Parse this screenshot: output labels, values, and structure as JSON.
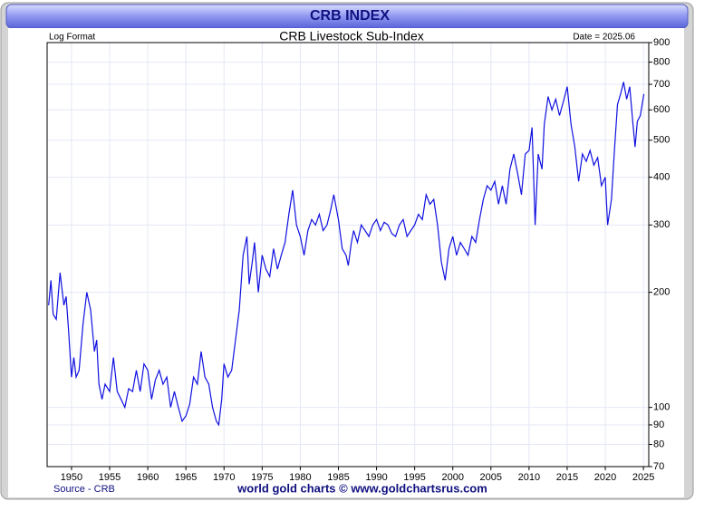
{
  "chart_data": {
    "type": "line",
    "title": "CRB INDEX",
    "subtitle": "CRB Livestock Sub-Index",
    "scale_note": "Log Format",
    "date_note": "Date = 2025.06",
    "source": "Source - CRB",
    "credit": "world gold charts © www.goldchartsrus.com",
    "log_scale": true,
    "grid": true,
    "xlim": [
      1946.8,
      2025.7
    ],
    "xticks": [
      1950,
      1955,
      1960,
      1965,
      1970,
      1975,
      1980,
      1985,
      1990,
      1995,
      2000,
      2005,
      2010,
      2015,
      2020,
      2025
    ],
    "ylim": [
      70,
      900
    ],
    "yticks": [
      70,
      80,
      90,
      100,
      200,
      300,
      400,
      500,
      600,
      700,
      800,
      900
    ],
    "series": [
      {
        "name": "CRB Livestock Sub-Index",
        "color": "#1010e0",
        "x": [
          1947.0,
          1947.3,
          1947.6,
          1948.0,
          1948.5,
          1949.0,
          1949.3,
          1949.6,
          1950.0,
          1950.3,
          1950.6,
          1951.0,
          1951.5,
          1952.0,
          1952.5,
          1953.0,
          1953.3,
          1953.6,
          1954.0,
          1954.4,
          1955.0,
          1955.5,
          1956.0,
          1956.5,
          1957.0,
          1957.5,
          1958.0,
          1958.5,
          1959.0,
          1959.5,
          1960.0,
          1960.5,
          1961.0,
          1961.5,
          1962.0,
          1962.5,
          1963.0,
          1963.5,
          1964.0,
          1964.5,
          1965.0,
          1965.5,
          1966.0,
          1966.5,
          1967.0,
          1967.5,
          1968.0,
          1968.5,
          1969.0,
          1969.3,
          1969.7,
          1970.0,
          1970.5,
          1971.0,
          1971.5,
          1972.0,
          1972.5,
          1973.0,
          1973.3,
          1973.7,
          1974.0,
          1974.5,
          1975.0,
          1975.5,
          1976.0,
          1976.5,
          1977.0,
          1977.5,
          1978.0,
          1978.5,
          1979.0,
          1979.5,
          1980.0,
          1980.5,
          1981.0,
          1981.5,
          1982.0,
          1982.5,
          1983.0,
          1983.5,
          1984.0,
          1984.4,
          1985.0,
          1985.5,
          1986.0,
          1986.3,
          1986.7,
          1987.0,
          1987.5,
          1988.0,
          1988.5,
          1989.0,
          1989.5,
          1990.0,
          1990.5,
          1991.0,
          1991.5,
          1992.0,
          1992.5,
          1993.0,
          1993.5,
          1994.0,
          1994.5,
          1995.0,
          1995.5,
          1996.0,
          1996.5,
          1997.0,
          1997.5,
          1998.0,
          1998.5,
          1999.0,
          1999.5,
          2000.0,
          2000.5,
          2001.0,
          2001.5,
          2002.0,
          2002.5,
          2003.0,
          2003.5,
          2004.0,
          2004.5,
          2005.0,
          2005.5,
          2006.0,
          2006.5,
          2007.0,
          2007.5,
          2008.0,
          2008.5,
          2009.0,
          2009.5,
          2010.0,
          2010.4,
          2010.8,
          2011.2,
          2011.7,
          2012.0,
          2012.5,
          2013.0,
          2013.5,
          2014.0,
          2014.5,
          2015.0,
          2015.5,
          2016.0,
          2016.5,
          2017.0,
          2017.5,
          2018.0,
          2018.5,
          2019.0,
          2019.5,
          2020.0,
          2020.3,
          2020.8,
          2021.2,
          2021.6,
          2022.0,
          2022.4,
          2022.8,
          2023.2,
          2023.6,
          2023.9,
          2024.2,
          2024.6,
          2025.06
        ],
        "values": [
          185,
          215,
          175,
          170,
          225,
          185,
          195,
          160,
          120,
          135,
          120,
          125,
          165,
          200,
          180,
          140,
          150,
          115,
          105,
          115,
          110,
          135,
          110,
          105,
          100,
          112,
          110,
          125,
          110,
          130,
          125,
          105,
          118,
          125,
          115,
          120,
          100,
          110,
          100,
          92,
          95,
          102,
          120,
          115,
          140,
          120,
          115,
          100,
          92,
          90,
          105,
          130,
          120,
          125,
          150,
          180,
          250,
          280,
          210,
          240,
          270,
          200,
          250,
          230,
          220,
          260,
          230,
          250,
          270,
          320,
          370,
          300,
          280,
          250,
          290,
          310,
          300,
          320,
          290,
          300,
          330,
          360,
          310,
          260,
          250,
          235,
          270,
          290,
          270,
          300,
          290,
          280,
          300,
          310,
          290,
          305,
          300,
          285,
          280,
          300,
          310,
          280,
          290,
          300,
          320,
          310,
          360,
          340,
          350,
          300,
          240,
          215,
          260,
          280,
          250,
          270,
          260,
          250,
          280,
          270,
          310,
          350,
          380,
          370,
          390,
          340,
          380,
          340,
          420,
          460,
          410,
          360,
          460,
          470,
          540,
          300,
          460,
          420,
          550,
          650,
          600,
          640,
          580,
          630,
          690,
          550,
          480,
          390,
          460,
          440,
          470,
          430,
          450,
          380,
          400,
          300,
          350,
          470,
          620,
          660,
          710,
          640,
          690,
          560,
          480,
          560,
          580,
          660
        ]
      }
    ]
  }
}
